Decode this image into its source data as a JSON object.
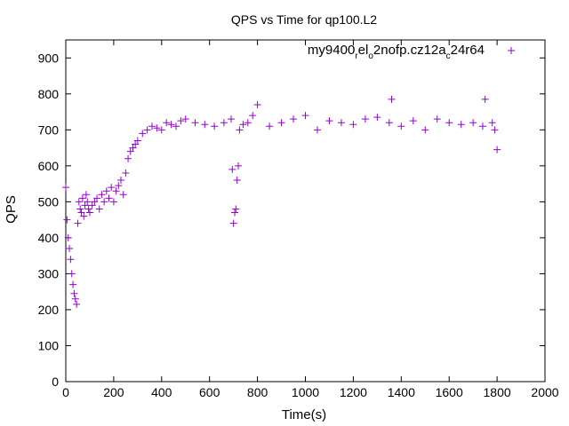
{
  "chart_data": {
    "type": "scatter",
    "title": "QPS vs Time for qp100.L2",
    "xlabel": "Time(s)",
    "ylabel": "QPS",
    "xlim": [
      0,
      2000
    ],
    "ylim": [
      0,
      950
    ],
    "xticks": [
      0,
      200,
      400,
      600,
      800,
      1000,
      1200,
      1400,
      1600,
      1800,
      2000
    ],
    "yticks": [
      0,
      100,
      200,
      300,
      400,
      500,
      600,
      700,
      800,
      900
    ],
    "grid": false,
    "legend_position": "top-right",
    "marker": "plus",
    "color": "#9400d3",
    "legend": {
      "base1": "my9400",
      "sub1": "r",
      "mid1": "el",
      "sub2": "o",
      "mid2": "2nofp.cz12a",
      "sub3": "c",
      "mid3": "24r64"
    },
    "series": [
      {
        "name": "my9400_rel_o2nofp.cz12a_c24r64",
        "x": [
          0,
          5,
          10,
          15,
          20,
          25,
          30,
          35,
          40,
          45,
          50,
          55,
          60,
          65,
          70,
          75,
          80,
          85,
          90,
          95,
          100,
          110,
          120,
          130,
          140,
          150,
          160,
          170,
          180,
          190,
          200,
          210,
          220,
          230,
          240,
          250,
          260,
          270,
          280,
          290,
          300,
          320,
          340,
          360,
          380,
          400,
          420,
          440,
          460,
          480,
          500,
          540,
          580,
          620,
          660,
          690,
          695,
          700,
          705,
          710,
          715,
          720,
          725,
          740,
          760,
          780,
          800,
          850,
          900,
          950,
          1000,
          1050,
          1100,
          1150,
          1200,
          1250,
          1300,
          1350,
          1360,
          1400,
          1450,
          1500,
          1550,
          1600,
          1650,
          1700,
          1740,
          1750,
          1780,
          1790,
          1800
        ],
        "y": [
          540,
          450,
          400,
          370,
          340,
          300,
          270,
          245,
          230,
          215,
          440,
          500,
          480,
          470,
          510,
          460,
          490,
          520,
          500,
          480,
          470,
          490,
          500,
          510,
          480,
          520,
          500,
          530,
          510,
          540,
          500,
          530,
          545,
          560,
          520,
          580,
          620,
          640,
          650,
          660,
          670,
          690,
          700,
          710,
          705,
          700,
          720,
          715,
          710,
          725,
          730,
          720,
          715,
          710,
          720,
          730,
          590,
          440,
          470,
          480,
          560,
          600,
          700,
          715,
          720,
          740,
          770,
          710,
          720,
          730,
          740,
          700,
          725,
          720,
          715,
          730,
          735,
          720,
          785,
          710,
          725,
          700,
          730,
          720,
          715,
          720,
          710,
          785,
          720,
          700,
          645
        ]
      }
    ]
  }
}
